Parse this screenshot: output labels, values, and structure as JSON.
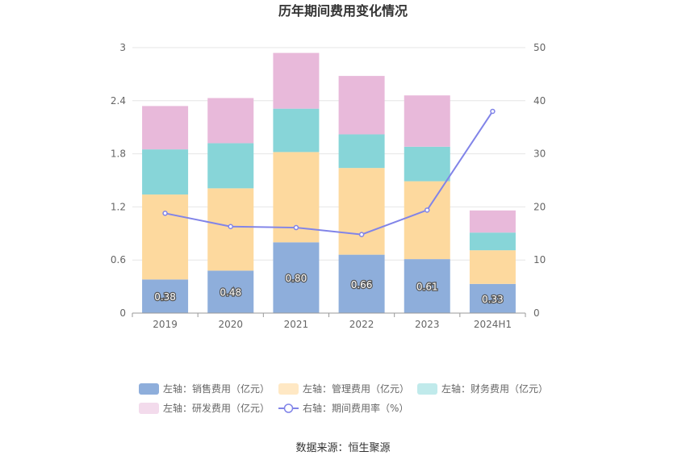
{
  "chart_data": {
    "type": "bar",
    "title": "历年期间费用变化情况",
    "categories": [
      "2019",
      "2020",
      "2021",
      "2022",
      "2023",
      "2024H1"
    ],
    "left_axis": {
      "ylim": [
        0,
        3
      ],
      "ticks": [
        "0",
        "0.6",
        "1.2",
        "1.8",
        "2.4",
        "3"
      ]
    },
    "right_axis": {
      "ylim": [
        0,
        50
      ],
      "ticks": [
        "0",
        "10",
        "20",
        "30",
        "40",
        "50"
      ]
    },
    "series": [
      {
        "name": "左轴：销售费用（亿元）",
        "type": "bar",
        "axis": "left",
        "color": "#8eaedb",
        "values": [
          0.38,
          0.48,
          0.8,
          0.66,
          0.61,
          0.33
        ],
        "labels": [
          "0.38",
          "0.48",
          "0.80",
          "0.66",
          "0.61",
          "0.33"
        ]
      },
      {
        "name": "左轴：管理费用（亿元）",
        "type": "bar",
        "axis": "left",
        "color": "#fdd99e",
        "legend_color": "#ffe8c4",
        "values": [
          0.96,
          0.93,
          1.02,
          0.98,
          0.88,
          0.38
        ]
      },
      {
        "name": "左轴：财务费用（亿元）",
        "type": "bar",
        "axis": "left",
        "color": "#87d5d8",
        "legend_color": "#c0eaeb",
        "values": [
          0.51,
          0.51,
          0.49,
          0.38,
          0.39,
          0.2
        ]
      },
      {
        "name": "左轴：研发费用（亿元）",
        "type": "bar",
        "axis": "left",
        "color": "#e8b9da",
        "legend_color": "#f3dbec",
        "values": [
          0.49,
          0.51,
          0.63,
          0.66,
          0.58,
          0.25
        ]
      },
      {
        "name": "右轴：期间费用率（%）",
        "type": "line",
        "axis": "right",
        "color": "#8184e8",
        "values": [
          18.8,
          16.3,
          16.1,
          14.8,
          19.4,
          38.0
        ]
      }
    ],
    "source": "数据来源：恒生聚源"
  }
}
